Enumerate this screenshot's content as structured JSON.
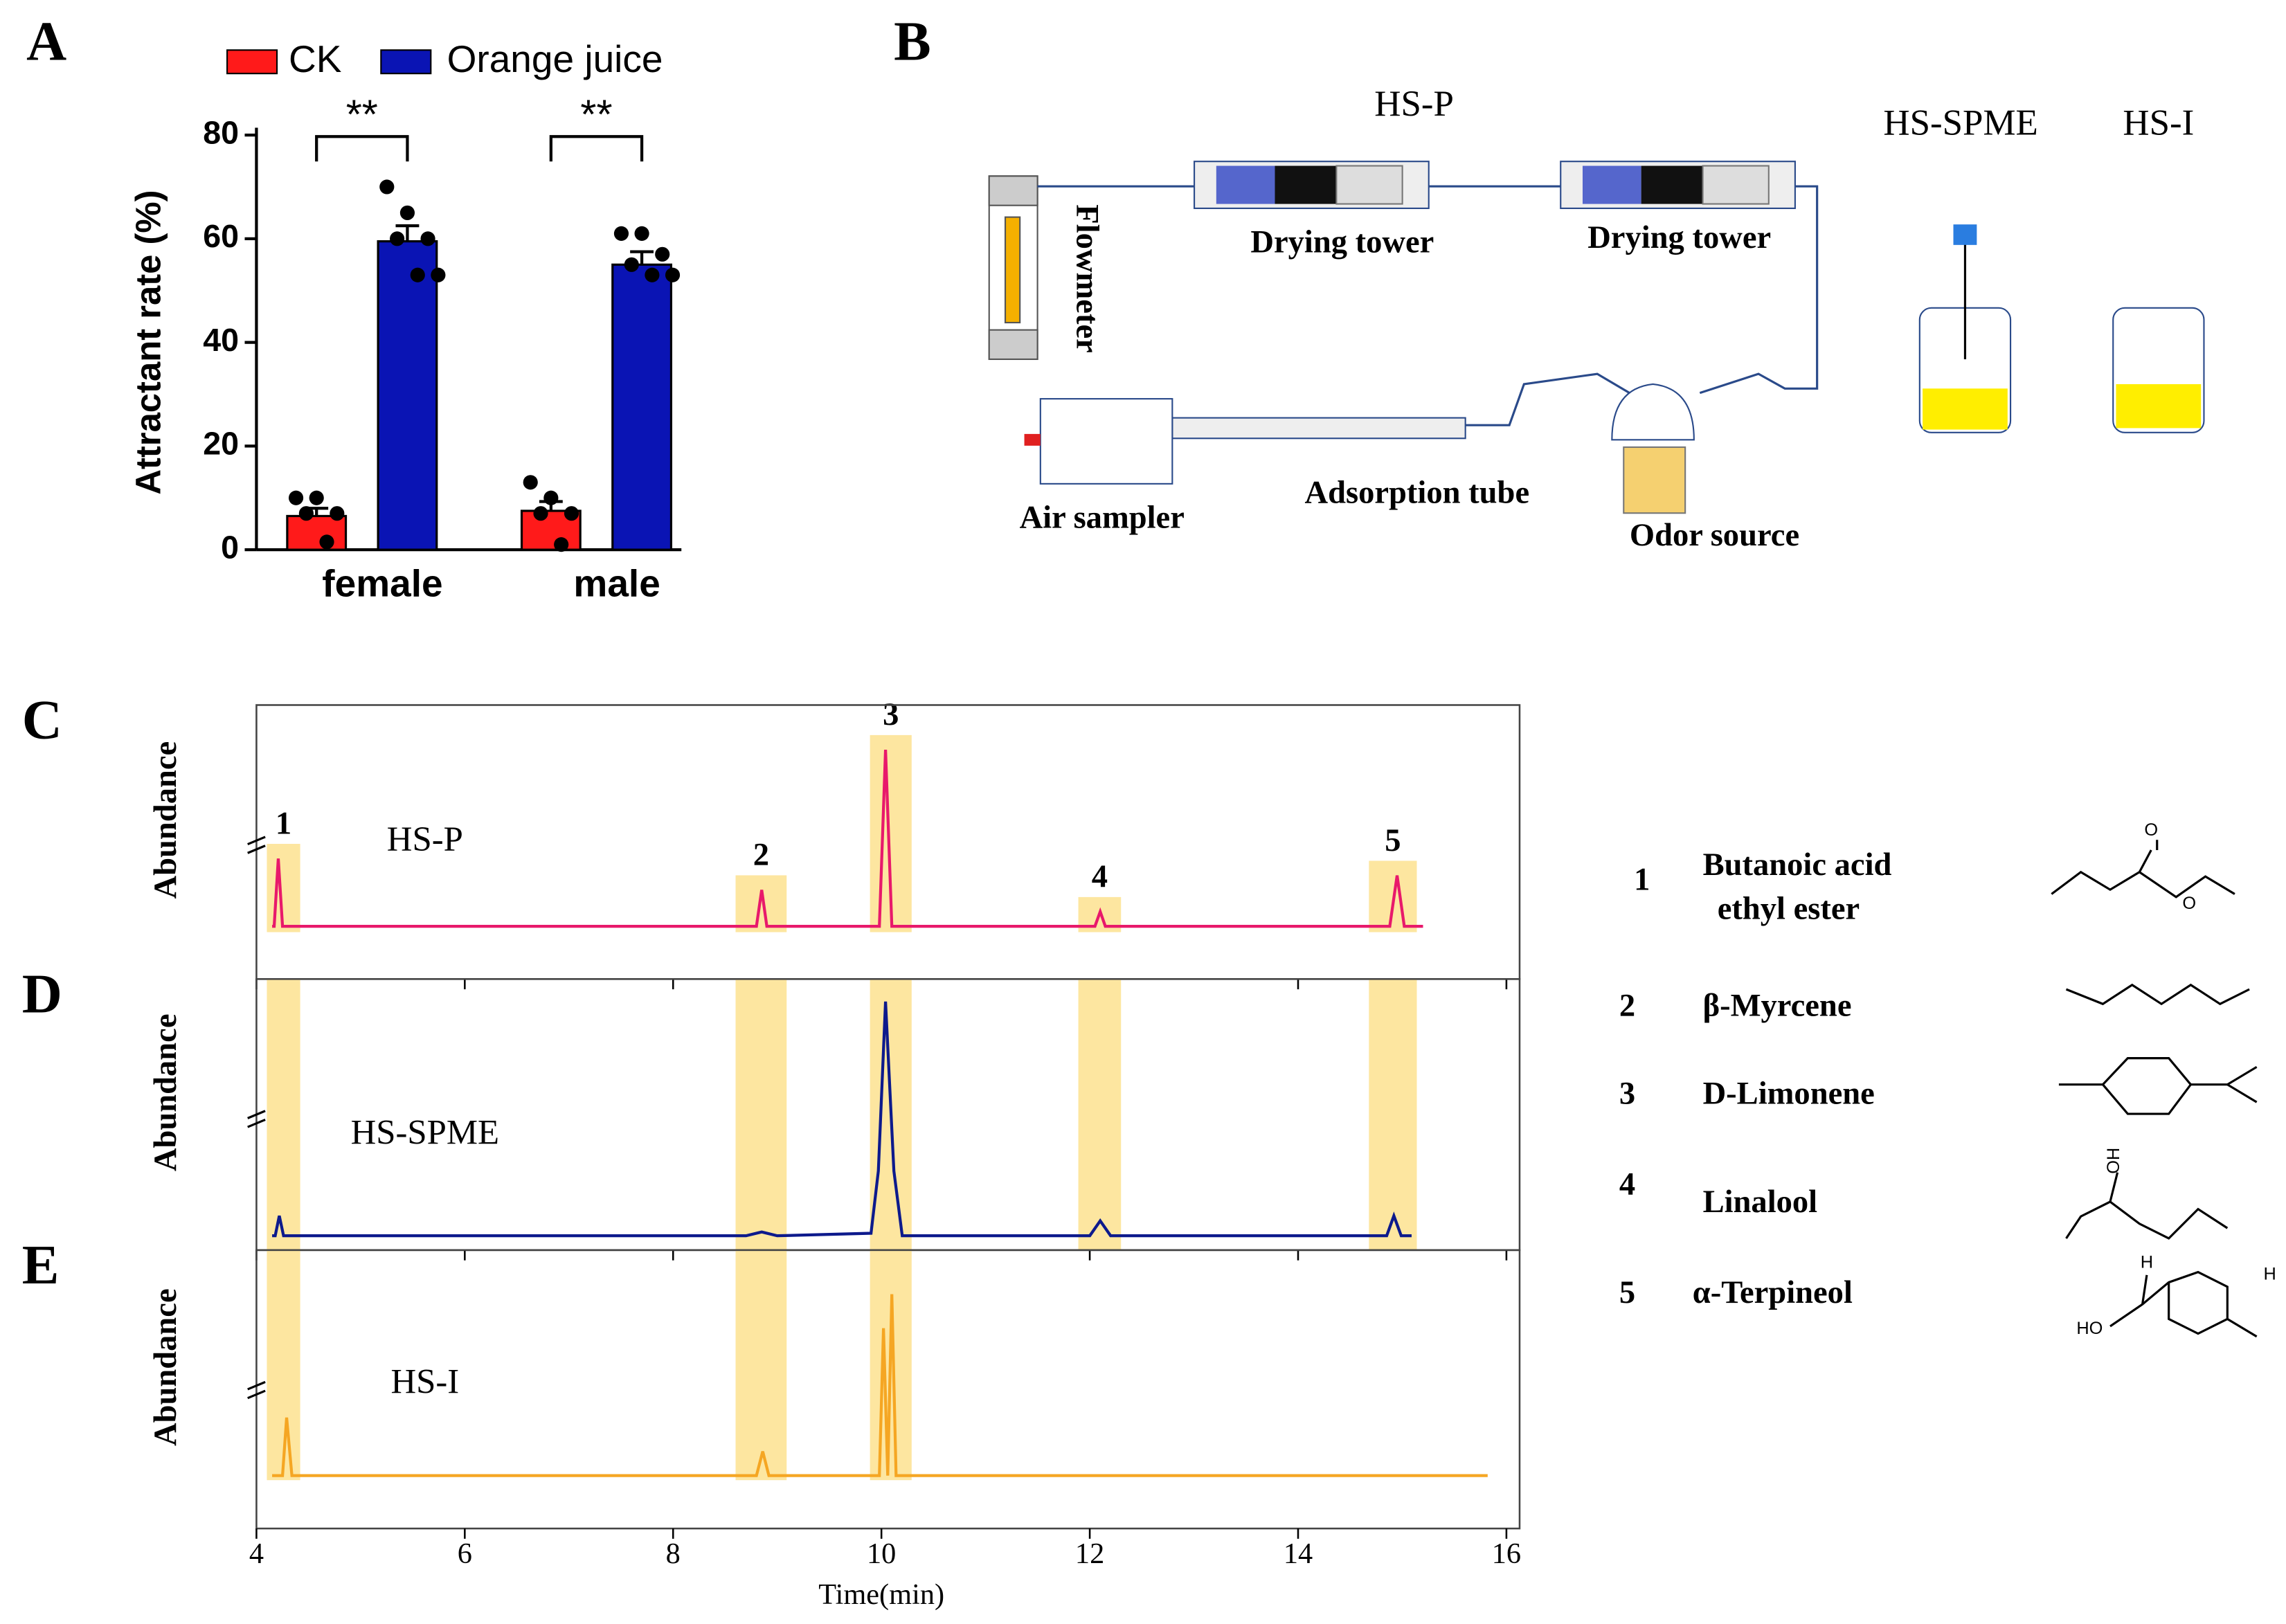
{
  "chart_data": [
    {
      "type": "bar",
      "panel": "A",
      "ylabel": "Attractant rate (%)",
      "categories": [
        "female",
        "male"
      ],
      "series": [
        {
          "name": "CK",
          "color": "#ff1a1a",
          "values": [
            6.5,
            7.5
          ],
          "errors": [
            1.5,
            1.8
          ],
          "points": [
            [
              10,
              10,
              7,
              7,
              1.5
            ],
            [
              13,
              10,
              7,
              7,
              1
            ]
          ]
        },
        {
          "name": "Orange juice",
          "color": "#0a14b4",
          "values": [
            59.5,
            55
          ],
          "errors": [
            3,
            2.5
          ],
          "points": [
            [
              70,
              65,
              60,
              60,
              53,
              53
            ],
            [
              61,
              61,
              57,
              55,
              53,
              53
            ]
          ]
        }
      ],
      "ylim": [
        0,
        80
      ],
      "yticks": [
        0,
        20,
        40,
        60,
        80
      ],
      "annotations": [
        "**",
        "**"
      ]
    },
    {
      "type": "line",
      "panel": "C",
      "ylabel": "Abundance",
      "xlim": [
        4,
        16
      ],
      "xticks": [
        4,
        6,
        8,
        10,
        12,
        14,
        16
      ],
      "ylim": [
        0,
        100
      ],
      "series": [
        {
          "name": "HS-P",
          "color": "#e8196b",
          "x": [
            4.15,
            4.17,
            4.21,
            4.25,
            8.8,
            8.85,
            8.9,
            9.98,
            10.04,
            10.1,
            12.05,
            12.1,
            12.15,
            14.88,
            14.95,
            15.02,
            15.2
          ],
          "values": [
            17,
            17,
            45,
            17,
            17,
            32,
            17,
            17,
            90,
            17,
            17,
            23,
            17,
            17,
            38,
            17,
            17
          ]
        }
      ],
      "highlights": [
        {
          "label": "1",
          "xlim": [
            4.1,
            4.42
          ]
        },
        {
          "label": "2",
          "xlim": [
            8.6,
            9.09
          ]
        },
        {
          "label": "3",
          "xlim": [
            9.89,
            10.29
          ]
        },
        {
          "label": "4",
          "xlim": [
            11.89,
            12.3
          ]
        },
        {
          "label": "5",
          "xlim": [
            14.68,
            15.14
          ]
        }
      ]
    },
    {
      "type": "line",
      "panel": "D",
      "ylabel": "Abundance",
      "xlim": [
        4,
        16
      ],
      "xticks": [
        4,
        6,
        8,
        10,
        12,
        14,
        16
      ],
      "ylim": [
        0,
        100
      ],
      "series": [
        {
          "name": "HS-SPME",
          "color": "#0d1a8c",
          "x": [
            4.15,
            4.18,
            4.22,
            4.26,
            8.7,
            8.85,
            9.0,
            9.9,
            9.97,
            10.04,
            10.12,
            10.2,
            12.0,
            12.1,
            12.2,
            14.85,
            14.92,
            14.99,
            15.09
          ],
          "values": [
            4,
            4,
            12,
            4,
            4,
            5.5,
            4,
            5,
            30,
            98,
            30,
            4,
            4,
            10,
            4,
            4,
            12,
            4,
            4
          ]
        }
      ],
      "bands": [
        [
          4.1,
          4.42
        ],
        [
          8.6,
          9.09
        ],
        [
          9.89,
          10.29
        ],
        [
          11.89,
          12.3
        ],
        [
          14.68,
          15.14
        ]
      ]
    },
    {
      "type": "line",
      "panel": "E",
      "ylabel": "Abundance",
      "xlabel": "Time(min)",
      "xlim": [
        4,
        16
      ],
      "xticks": [
        4,
        6,
        8,
        10,
        12,
        14,
        16
      ],
      "ylim": [
        0,
        100
      ],
      "series": [
        {
          "name": "HS-I",
          "color": "#f5a623",
          "x": [
            4.15,
            4.25,
            4.29,
            4.34,
            8.8,
            8.86,
            8.92,
            9.98,
            10.02,
            10.06,
            10.1,
            10.14,
            15.82
          ],
          "values": [
            14,
            14,
            38,
            14,
            14,
            24,
            14,
            14,
            75,
            14,
            89,
            14,
            14
          ]
        }
      ],
      "bands": [
        [
          4.1,
          4.42
        ],
        [
          8.6,
          9.09
        ],
        [
          9.89,
          10.29
        ]
      ]
    }
  ],
  "diagram": {
    "panel": "B",
    "methods": [
      {
        "name": "HS-P",
        "color": "#e8196b"
      },
      {
        "name": "HS-SPME",
        "color": "#1a1a9c"
      },
      {
        "name": "HS-I",
        "color": "#f08a1c"
      }
    ],
    "parts": [
      "Flowmeter",
      "Drying tower",
      "Drying tower",
      "Air sampler",
      "Adsorption tube",
      "Odor source"
    ]
  },
  "compounds": [
    {
      "number": "1",
      "name": [
        "Butanoic acid",
        "ethyl ester"
      ],
      "atoms": [
        "O",
        "O"
      ]
    },
    {
      "number": "2",
      "name": [
        "β-Myrcene"
      ]
    },
    {
      "number": "3",
      "name": [
        "D-Limonene"
      ]
    },
    {
      "number": "4",
      "name": [
        "Linalool"
      ],
      "atoms": [
        "OH"
      ]
    },
    {
      "number": "5",
      "name": [
        "α-Terpineol"
      ],
      "atoms": [
        "H",
        "H",
        "HO"
      ]
    }
  ]
}
